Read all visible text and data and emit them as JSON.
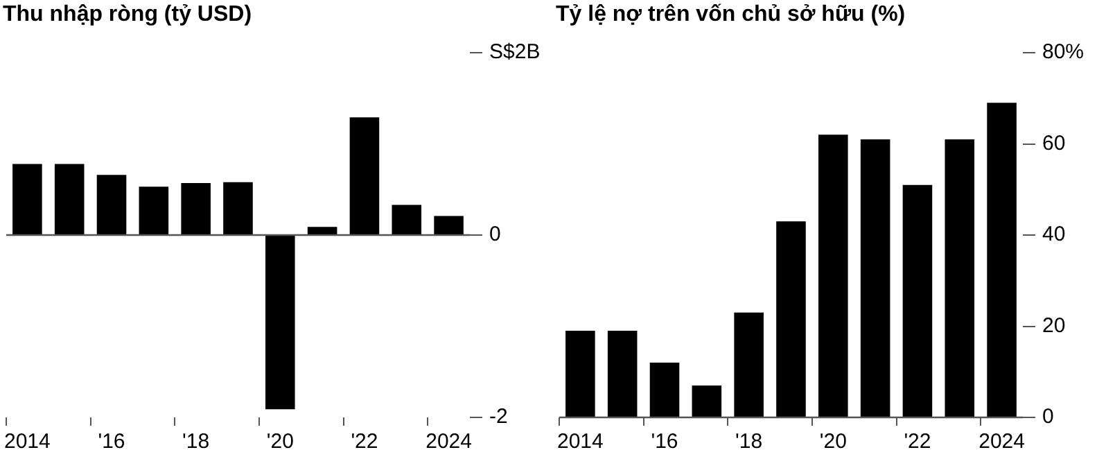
{
  "chart_data": [
    {
      "type": "bar",
      "title": "Thu nhập ròng (tỷ USD)",
      "categories": [
        "2014",
        null,
        "'16",
        null,
        "'18",
        null,
        "'20",
        null,
        "'22",
        null,
        "2024"
      ],
      "series": [
        {
          "color": "#000000",
          "values": [
            0.78,
            0.78,
            0.66,
            0.53,
            0.57,
            0.58,
            -1.91,
            0.09,
            1.29,
            0.33,
            0.21
          ]
        }
      ],
      "ylim": [
        -2,
        2
      ],
      "yticks": [
        -2,
        0,
        {
          "value": 2,
          "label": "S$2B"
        }
      ],
      "legend": false
    },
    {
      "type": "bar",
      "title": "Tỷ lệ nợ trên vốn chủ sở hữu (%)",
      "categories": [
        "2014",
        null,
        "'16",
        null,
        "'18",
        null,
        "'20",
        null,
        "'22",
        null,
        "2024"
      ],
      "series": [
        {
          "color": "#000000",
          "values": [
            19,
            19,
            12,
            7,
            23,
            43,
            62,
            61,
            51,
            61,
            69
          ]
        }
      ],
      "ylim": [
        0,
        80
      ],
      "yticks": [
        0,
        20,
        40,
        60,
        {
          "value": 80,
          "label": "80%"
        }
      ],
      "legend": false
    }
  ]
}
